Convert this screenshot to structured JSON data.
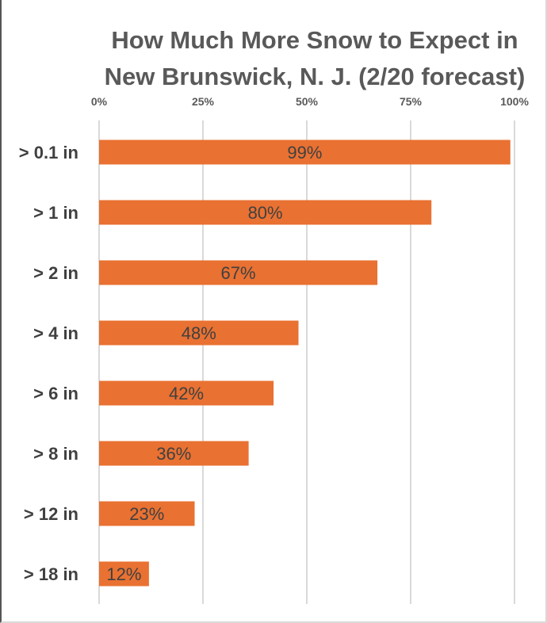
{
  "chart_data": {
    "type": "bar",
    "orientation": "horizontal",
    "title": "How Much More Snow to Expect in New Brunswick, N. J. (2/20 forecast)",
    "title_lines": [
      "How Much More Snow to Expect in",
      "New Brunswick, N. J. (2/20 forecast)"
    ],
    "categories": [
      "> 0.1 in",
      "> 1 in",
      "> 2 in",
      "> 4 in",
      "> 6 in",
      "> 8 in",
      "> 12 in",
      "> 18 in"
    ],
    "values": [
      99,
      80,
      67,
      48,
      42,
      36,
      23,
      12
    ],
    "data_labels": [
      "99%",
      "80%",
      "67%",
      "48%",
      "42%",
      "36%",
      "23%",
      "12%"
    ],
    "xlim": [
      0,
      100
    ],
    "x_ticks": [
      0,
      25,
      50,
      75,
      100
    ],
    "x_tick_labels": [
      "0%",
      "25%",
      "50%",
      "75%",
      "100%"
    ],
    "x_axis_position": "top",
    "grid": true,
    "xlabel": "",
    "ylabel": "",
    "bar_color": "#E97132"
  }
}
